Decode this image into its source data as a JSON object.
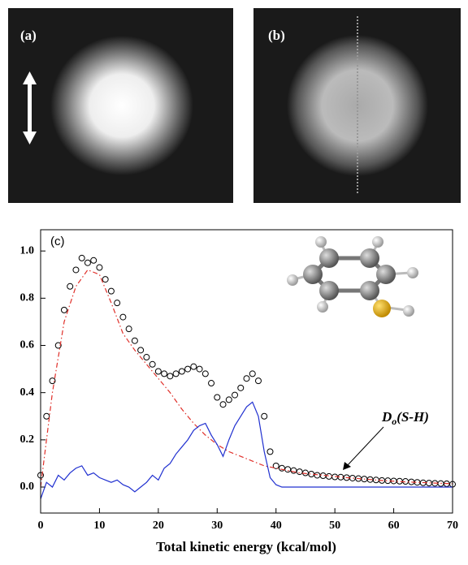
{
  "panels": [
    {
      "label": "(a)"
    },
    {
      "label": "(b)"
    }
  ],
  "chart_data": {
    "type": "line",
    "xlabel": "Total kinetic energy (kcal/mol)",
    "xlim": [
      0,
      70
    ],
    "xticks": [
      0,
      10,
      20,
      30,
      40,
      50,
      60,
      70
    ],
    "ylim": [
      -0.11,
      1.09
    ],
    "yticks": [
      {
        "value": 0,
        "label": "0.0"
      },
      0.2,
      0.4,
      0.6,
      0.8,
      {
        "value": 1,
        "label": "1.0"
      }
    ],
    "annotations": [
      {
        "text": "(c)"
      },
      {
        "parts": [
          "D",
          "o",
          "(S-H)"
        ]
      }
    ],
    "series": [
      {
        "style": "markers",
        "color": "#000000",
        "x": [
          0,
          1,
          2,
          3,
          4,
          5,
          6,
          7,
          8,
          9,
          10,
          11,
          12,
          13,
          14,
          15,
          16,
          17,
          18,
          19,
          20,
          21,
          22,
          23,
          24,
          25,
          26,
          27,
          28,
          29,
          30,
          31,
          32,
          33,
          34,
          35,
          36,
          37,
          38,
          39,
          40,
          41,
          42,
          43,
          44,
          45,
          46,
          47,
          48,
          49,
          50,
          51,
          52,
          53,
          54,
          55,
          56,
          57,
          58,
          59,
          60,
          61,
          62,
          63,
          64,
          65,
          66,
          67,
          68,
          69,
          70
        ],
        "values": [
          0.05,
          0.3,
          0.45,
          0.6,
          0.75,
          0.85,
          0.92,
          0.97,
          0.95,
          0.96,
          0.93,
          0.88,
          0.83,
          0.78,
          0.72,
          0.67,
          0.62,
          0.58,
          0.55,
          0.52,
          0.49,
          0.48,
          0.47,
          0.48,
          0.49,
          0.5,
          0.51,
          0.5,
          0.48,
          0.44,
          0.38,
          0.35,
          0.37,
          0.39,
          0.42,
          0.46,
          0.48,
          0.45,
          0.3,
          0.15,
          0.09,
          0.08,
          0.075,
          0.07,
          0.065,
          0.06,
          0.055,
          0.05,
          0.048,
          0.045,
          0.043,
          0.042,
          0.04,
          0.038,
          0.036,
          0.034,
          0.032,
          0.03,
          0.028,
          0.027,
          0.026,
          0.025,
          0.024,
          0.022,
          0.02,
          0.018,
          0.017,
          0.016,
          0.015,
          0.014,
          0.012
        ]
      },
      {
        "style": "dashdot",
        "color": "#e0302a",
        "x": [
          0,
          2,
          4,
          6,
          8,
          10,
          12,
          14,
          16,
          18,
          20,
          22,
          24,
          26,
          28,
          30,
          32,
          34,
          36,
          38,
          40,
          42,
          44,
          46,
          48,
          50,
          52,
          54,
          56,
          58,
          60,
          62,
          64,
          66,
          68,
          70
        ],
        "values": [
          0,
          0.4,
          0.7,
          0.85,
          0.92,
          0.9,
          0.78,
          0.65,
          0.58,
          0.52,
          0.46,
          0.4,
          0.33,
          0.27,
          0.22,
          0.18,
          0.15,
          0.13,
          0.11,
          0.09,
          0.08,
          0.07,
          0.06,
          0.055,
          0.05,
          0.045,
          0.04,
          0.036,
          0.032,
          0.028,
          0.025,
          0.022,
          0.02,
          0.018,
          0.016,
          0.014
        ]
      },
      {
        "style": "solid",
        "color": "#2030d0",
        "x": [
          0,
          1,
          2,
          3,
          4,
          5,
          6,
          7,
          8,
          9,
          10,
          11,
          12,
          13,
          14,
          15,
          16,
          17,
          18,
          19,
          20,
          21,
          22,
          23,
          24,
          25,
          26,
          27,
          28,
          29,
          30,
          31,
          32,
          33,
          34,
          35,
          36,
          37,
          38,
          39,
          40,
          41,
          42,
          43,
          44,
          45,
          46,
          47,
          48,
          49,
          50,
          51,
          52,
          53,
          54,
          55,
          56,
          57,
          58,
          59,
          60,
          61,
          62,
          63,
          64,
          65,
          66,
          67,
          68,
          69,
          70
        ],
        "values": [
          -0.05,
          0.02,
          0,
          0.05,
          0.03,
          0.06,
          0.08,
          0.09,
          0.05,
          0.06,
          0.04,
          0.03,
          0.02,
          0.03,
          0.01,
          0,
          -0.02,
          0,
          0.02,
          0.05,
          0.03,
          0.08,
          0.1,
          0.14,
          0.17,
          0.2,
          0.24,
          0.26,
          0.27,
          0.22,
          0.18,
          0.13,
          0.2,
          0.26,
          0.3,
          0.34,
          0.36,
          0.3,
          0.15,
          0.04,
          0.01,
          0,
          0,
          0,
          0,
          0,
          0,
          0,
          0,
          0,
          0,
          0,
          0,
          0,
          0,
          0,
          0,
          0,
          0,
          0,
          0,
          0,
          0,
          0,
          0,
          0,
          0,
          0,
          0,
          0,
          0
        ]
      }
    ]
  }
}
